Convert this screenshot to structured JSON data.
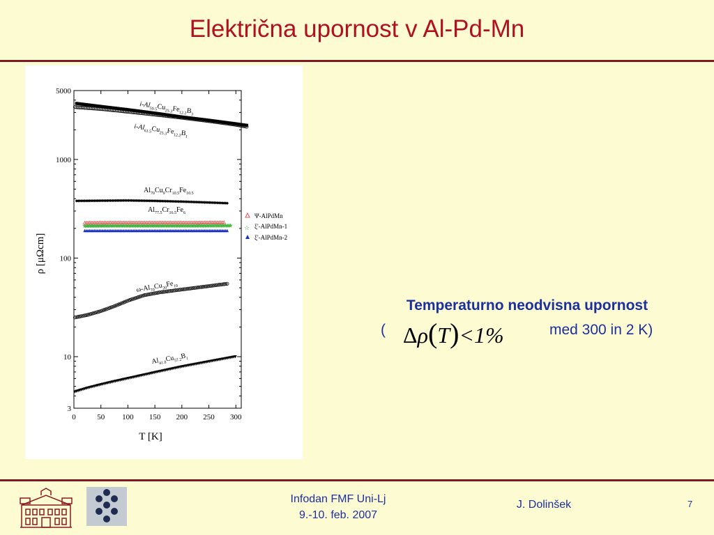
{
  "slide": {
    "title": "Električna upornost v Al-Pd-Mn",
    "note_heading": "Temperaturno neodvisna upornost",
    "note_open": "(",
    "note_tail": "med 300 in 2 K)",
    "formula": {
      "delta": "Δ",
      "rho": "ρ",
      "lparen": "(",
      "T": "T",
      "rparen": ")",
      "rest": "<1%"
    }
  },
  "footer": {
    "event": "Infodan FMF Uni-Lj",
    "date": "9.-10. feb. 2007",
    "author": "J. Dolinšek",
    "page": "7"
  },
  "colors": {
    "title": "#b01020",
    "rule": "#7a1a22",
    "text": "#1c2f9e",
    "background": "#fdfbd2"
  },
  "chart_data": {
    "type": "scatter",
    "xlabel": "T [K]",
    "ylabel": "ρ [μΩcm]",
    "xlim": [
      0,
      310
    ],
    "ylim": [
      3,
      5000
    ],
    "yscale": "log",
    "xticks": [
      0,
      50,
      100,
      150,
      200,
      250,
      300
    ],
    "yticks": [
      3,
      10,
      100,
      1000,
      5000
    ],
    "legend": {
      "placement": "right",
      "entries": [
        {
          "label": "Ψ-AlPdMn",
          "marker": "triangle-open",
          "color": "#e05050"
        },
        {
          "label": "ξ'-AlPdMn-1",
          "marker": "star",
          "color": "#30b030"
        },
        {
          "label": "ξ'-AlPdMn-2",
          "marker": "triangle",
          "color": "#1830c0"
        }
      ]
    },
    "series": [
      {
        "label": {
          "base": "i-Al",
          "sub1": "59.5",
          "cu": "Cu",
          "sub2": "25.3",
          "fe": "Fe",
          "sub3": "12.2",
          "b": "B",
          "sub4": "3"
        },
        "x": [
          5,
          50,
          100,
          150,
          200,
          250,
          300,
          320
        ],
        "y": [
          3700,
          3450,
          3200,
          2950,
          2700,
          2500,
          2300,
          2220
        ],
        "marker": "square",
        "color": "#000000"
      },
      {
        "label": {
          "base": "i-Al",
          "sub1": "61.5",
          "cu": "Cu",
          "sub2": "25.3",
          "fe": "Fe",
          "sub3": "12.2",
          "b": "B",
          "sub4": "1"
        },
        "x": [
          2,
          50,
          100,
          150,
          200,
          250,
          300,
          320
        ],
        "y": [
          3400,
          3250,
          3050,
          2850,
          2650,
          2450,
          2250,
          2150
        ],
        "marker": "circle-open",
        "color": "#000000"
      },
      {
        "label": {
          "base": "Al",
          "sub1": "70",
          "cu": "Cu",
          "sub2": "9",
          "cr": "Cr",
          "sub3": "10.5",
          "fe": "Fe",
          "sub4": "10.5"
        },
        "x": [
          5,
          50,
          100,
          150,
          200,
          250,
          285
        ],
        "y": [
          380,
          382,
          384,
          380,
          374,
          366,
          360
        ],
        "marker": "diamond",
        "color": "#000000"
      },
      {
        "label": {
          "base": "Al",
          "sub1": "77.5",
          "cr": "Cr",
          "sub2": "16.5",
          "fe": "Fe",
          "sub3": "6"
        },
        "x": [],
        "y": [],
        "marker": "",
        "color": "#000000"
      },
      {
        "name": "Ψ-AlPdMn",
        "x": [
          20,
          70,
          120,
          170,
          220,
          280
        ],
        "y": [
          228,
          229,
          229,
          229,
          229,
          230
        ],
        "marker": "triangle-open",
        "color": "#e05050"
      },
      {
        "name": "ξ'-AlPdMn-1",
        "x": [
          20,
          70,
          120,
          170,
          220,
          290
        ],
        "y": [
          212,
          213,
          213,
          213,
          213,
          214
        ],
        "marker": "star",
        "color": "#30b030"
      },
      {
        "name": "ξ'-AlPdMn-2",
        "x": [
          20,
          70,
          120,
          170,
          220,
          285
        ],
        "y": [
          190,
          190,
          190,
          190,
          190,
          190
        ],
        "marker": "triangle",
        "color": "#1830c0"
      },
      {
        "label": {
          "base": "ω-Al",
          "sub1": "70",
          "cu": "Cu",
          "sub2": "20",
          "fe": "Fe",
          "sub3": "10"
        },
        "x": [
          2,
          25,
          50,
          75,
          100,
          130,
          160,
          200,
          250,
          285
        ],
        "y": [
          25,
          26.5,
          29,
          32.5,
          37,
          42,
          45,
          48,
          52,
          55
        ],
        "marker": "circle-open",
        "color": "#000000"
      },
      {
        "label": {
          "base": "Al",
          "sub1": "41.8",
          "cu": "Cu",
          "sub2": "57.2",
          "b": "B",
          "sub3": "1"
        },
        "x": [
          2,
          25,
          50,
          75,
          100,
          150,
          200,
          250,
          300
        ],
        "y": [
          4.4,
          4.8,
          5.2,
          5.6,
          6.0,
          6.9,
          7.9,
          8.9,
          10.0
        ],
        "marker": "triangle-down",
        "color": "#000000"
      }
    ]
  }
}
